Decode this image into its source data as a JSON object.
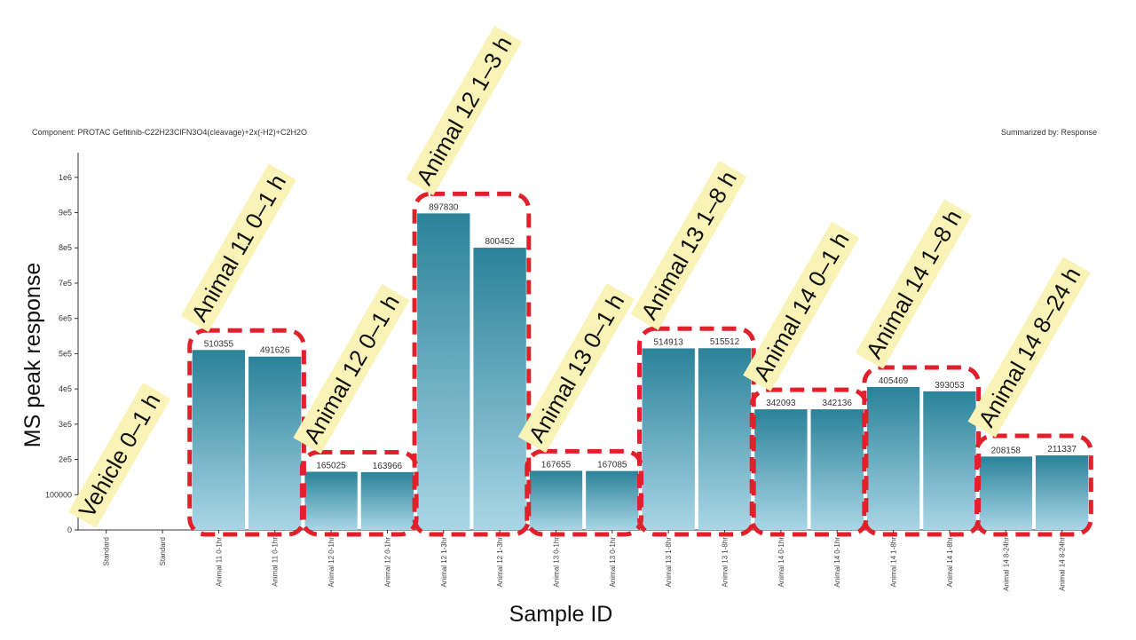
{
  "chart_data": {
    "type": "bar",
    "header_left": "Component: PROTAC Gefitinib-C22H23ClFN3O4(cleavage)+2x(-H2)+C2H2O",
    "header_right": "Summarized by: Response",
    "xlabel": "Sample ID",
    "ylabel": "MS peak response",
    "ylim": [
      0,
      1070000
    ],
    "yticks": [
      {
        "value": 0,
        "label": "0"
      },
      {
        "value": 100000,
        "label": "100000"
      },
      {
        "value": 200000,
        "label": "2e5"
      },
      {
        "value": 300000,
        "label": "3e5"
      },
      {
        "value": 400000,
        "label": "4e5"
      },
      {
        "value": 500000,
        "label": "5e5"
      },
      {
        "value": 600000,
        "label": "6e5"
      },
      {
        "value": 700000,
        "label": "7e5"
      },
      {
        "value": 800000,
        "label": "8e5"
      },
      {
        "value": 900000,
        "label": "9e5"
      },
      {
        "value": 1000000,
        "label": "1e6"
      }
    ],
    "categories": [
      "Standard",
      "Standard",
      "Animal 11 0-1hr",
      "Animal 11 0-1hr",
      "Animal 12 0-1hr",
      "Animal 12 0-1hr",
      "Animal 12 1-3hr",
      "Animal 12 1-3hr",
      "Animal 13 0-1hr",
      "Animal 13 0-1hr",
      "Animal 13 1-8hr",
      "Animal 13 1-8hr",
      "Animal 14 0-1hr",
      "Animal 14 0-1hr",
      "Animal 14 1-8hr",
      "Animal 14 1-8hr",
      "Animal 14 8-24hr",
      "Animal 14 8-24hr"
    ],
    "values": [
      0,
      0,
      510355,
      491626,
      165025,
      163966,
      897830,
      800452,
      167655,
      167085,
      514913,
      515512,
      342093,
      342136,
      405469,
      393053,
      208158,
      211337
    ],
    "value_labels": [
      "",
      "",
      "510355",
      "491626",
      "165025",
      "163966",
      "897830",
      "800452",
      "167655",
      "167085",
      "514913",
      "515512",
      "342093",
      "342136",
      "405469",
      "393053",
      "208158",
      "211337"
    ],
    "groups": [
      {
        "label": "Vehicle 0–1 h",
        "from": 0,
        "to": 1,
        "boxed": false
      },
      {
        "label": "Animal 11 0–1 h",
        "from": 2,
        "to": 3,
        "boxed": true
      },
      {
        "label": "Animal 12 0–1 h",
        "from": 4,
        "to": 5,
        "boxed": true
      },
      {
        "label": "Animal 12 1–3 h",
        "from": 6,
        "to": 7,
        "boxed": true
      },
      {
        "label": "Animal 13 0–1 h",
        "from": 8,
        "to": 9,
        "boxed": true
      },
      {
        "label": "Animal 13 1–8 h",
        "from": 10,
        "to": 11,
        "boxed": true
      },
      {
        "label": "Animal 14 0–1 h",
        "from": 12,
        "to": 13,
        "boxed": true
      },
      {
        "label": "Animal 14 1–8 h",
        "from": 14,
        "to": 15,
        "boxed": true
      },
      {
        "label": "Animal 14 8–24 h",
        "from": 16,
        "to": 17,
        "boxed": true
      }
    ],
    "colors": {
      "bar_top": "#2a8299",
      "bar_bottom": "#a9d6e6",
      "callout_fill": "#faf3b8",
      "box_stroke": "#e0202a",
      "axis": "#333333"
    },
    "grid": false,
    "legend": "none"
  }
}
